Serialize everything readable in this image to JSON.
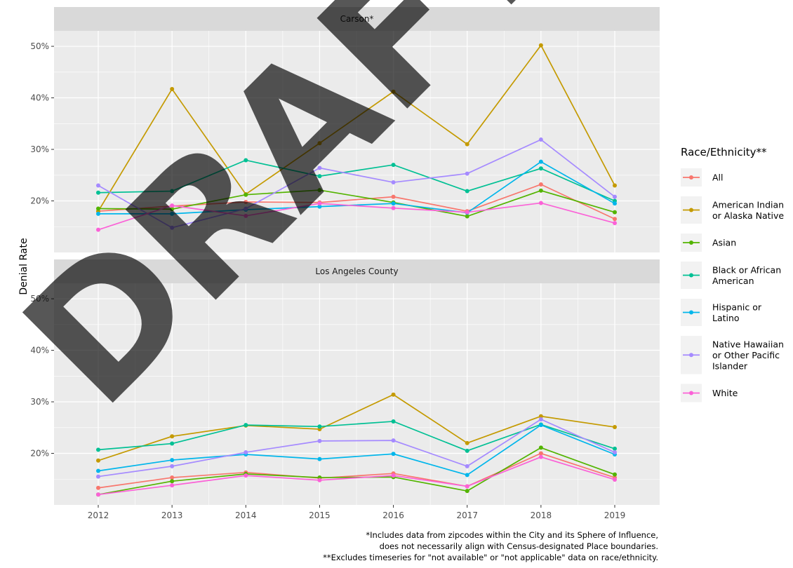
{
  "chart_data": {
    "type": "line",
    "ylabel": "Denial Rate",
    "xlabel": "",
    "x": [
      2012,
      2013,
      2014,
      2015,
      2016,
      2017,
      2018,
      2019
    ],
    "y_ticks": [
      "20%",
      "30%",
      "40%",
      "50%"
    ],
    "ylim": [
      0.1,
      0.53
    ],
    "grid": true,
    "legend": {
      "title": "Race/Ethnicity**",
      "placement": "right",
      "entries": [
        {
          "lines": [
            "All"
          ],
          "color": "#F8766D"
        },
        {
          "lines": [
            "American Indian",
            "or Alaska Native"
          ],
          "color": "#C49A00"
        },
        {
          "lines": [
            "Asian"
          ],
          "color": "#53B400"
        },
        {
          "lines": [
            "Black or African",
            "American"
          ],
          "color": "#00C094"
        },
        {
          "lines": [
            "Hispanic or",
            "Latino"
          ],
          "color": "#00B6EB"
        },
        {
          "lines": [
            "Native Hawaiian",
            "or Other Pacific",
            "Islander"
          ],
          "color": "#A58AFF"
        },
        {
          "lines": [
            "White"
          ],
          "color": "#FB61D7"
        }
      ]
    },
    "panels": [
      {
        "title": "Carson*",
        "series": [
          {
            "name": "All",
            "color": "#F8766D",
            "values": [
              0.18,
              0.19,
              0.198,
              0.197,
              0.208,
              0.18,
              0.232,
              0.165
            ]
          },
          {
            "name": "American Indian or Alaska Native",
            "color": "#C49A00",
            "values": [
              0.18,
              0.417,
              0.213,
              0.312,
              0.412,
              0.31,
              0.502,
              0.23
            ]
          },
          {
            "name": "Asian",
            "color": "#53B400",
            "values": [
              0.185,
              0.184,
              0.212,
              0.221,
              0.197,
              0.17,
              0.22,
              0.178
            ]
          },
          {
            "name": "Black or African American",
            "color": "#00C094",
            "values": [
              0.216,
              0.219,
              0.279,
              0.248,
              0.27,
              0.219,
              0.263,
              0.2
            ]
          },
          {
            "name": "Hispanic or Latino",
            "color": "#00B6EB",
            "values": [
              0.175,
              0.175,
              0.183,
              0.189,
              0.195,
              0.177,
              0.276,
              0.195
            ]
          },
          {
            "name": "Native Hawaiian or Other Pacific Islander",
            "color": "#A58AFF",
            "values": [
              0.23,
              0.148,
              0.185,
              0.264,
              0.236,
              0.253,
              0.319,
              0.208
            ]
          },
          {
            "name": "White",
            "color": "#FB61D7",
            "values": [
              0.144,
              0.191,
              0.171,
              0.195,
              0.186,
              0.178,
              0.196,
              0.157
            ]
          }
        ]
      },
      {
        "title": "Los Angeles County",
        "series": [
          {
            "name": "All",
            "color": "#F8766D",
            "values": [
              0.133,
              0.153,
              0.163,
              0.152,
              0.161,
              0.136,
              0.2,
              0.153
            ]
          },
          {
            "name": "American Indian or Alaska Native",
            "color": "#C49A00",
            "values": [
              0.186,
              0.233,
              0.254,
              0.247,
              0.314,
              0.22,
              0.272,
              0.251
            ]
          },
          {
            "name": "Asian",
            "color": "#53B400",
            "values": [
              0.12,
              0.146,
              0.16,
              0.153,
              0.154,
              0.127,
              0.211,
              0.159
            ]
          },
          {
            "name": "Black or African American",
            "color": "#00C094",
            "values": [
              0.207,
              0.219,
              0.255,
              0.252,
              0.262,
              0.205,
              0.256,
              0.209
            ]
          },
          {
            "name": "Hispanic or Latino",
            "color": "#00B6EB",
            "values": [
              0.166,
              0.187,
              0.198,
              0.189,
              0.199,
              0.158,
              0.255,
              0.198
            ]
          },
          {
            "name": "Native Hawaiian or Other Pacific Islander",
            "color": "#A58AFF",
            "values": [
              0.155,
              0.175,
              0.202,
              0.224,
              0.225,
              0.175,
              0.266,
              0.202
            ]
          },
          {
            "name": "White",
            "color": "#FB61D7",
            "values": [
              0.12,
              0.138,
              0.157,
              0.148,
              0.157,
              0.136,
              0.193,
              0.149
            ]
          }
        ]
      }
    ],
    "footnotes": [
      "*Includes data from zipcodes within the City and its Sphere of Influence,",
      "does not necessarily align with Census-designated Place boundaries.",
      "**Excludes timeseries for \"not available\" or \"not applicable\" data on race/ethnicity."
    ],
    "watermark": "DRAFT"
  }
}
